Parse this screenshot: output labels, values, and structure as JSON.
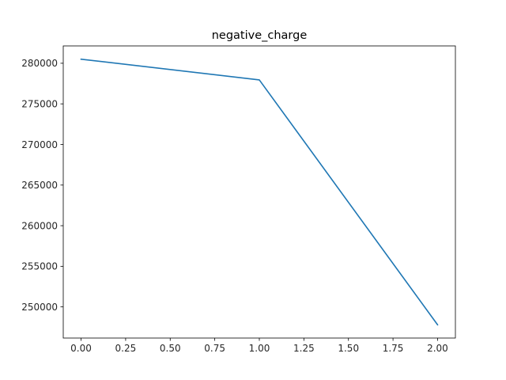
{
  "chart_data": {
    "type": "line",
    "title": "negative_charge",
    "xlabel": "",
    "ylabel": "",
    "x": [
      0,
      1,
      2
    ],
    "series": [
      {
        "values": [
          280500,
          277950,
          247800
        ],
        "color": "#1f77b4"
      }
    ],
    "xlim": [
      -0.1,
      2.1
    ],
    "ylim": [
      246165,
      282135
    ],
    "xticks": [
      0.0,
      0.25,
      0.5,
      0.75,
      1.0,
      1.25,
      1.5,
      1.75,
      2.0
    ],
    "xtick_labels": [
      "0.00",
      "0.25",
      "0.50",
      "0.75",
      "1.00",
      "1.25",
      "1.50",
      "1.75",
      "2.00"
    ],
    "yticks": [
      250000,
      255000,
      260000,
      265000,
      270000,
      275000,
      280000
    ],
    "ytick_labels": [
      "250000",
      "255000",
      "260000",
      "265000",
      "270000",
      "275000",
      "280000"
    ],
    "grid": false,
    "legend": "none"
  }
}
